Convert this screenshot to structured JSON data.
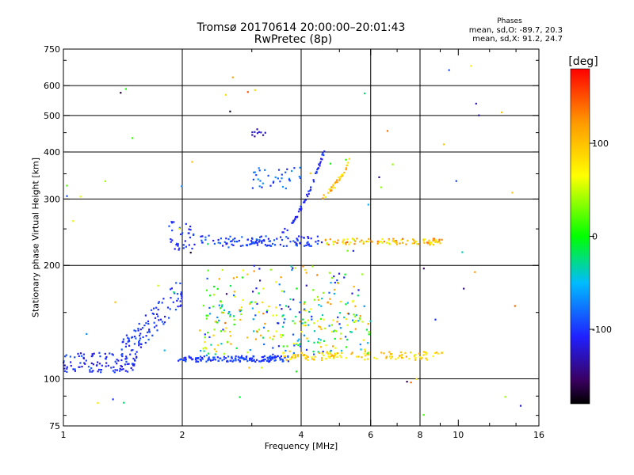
{
  "chart_data": {
    "type": "scatter",
    "title": "Tromsø 20170614 20:00:00–20:01:43",
    "subtitle": "RwPretec (8p)",
    "stats": {
      "header": "Phases",
      "o_line": "mean, sd,O:  -89.7, 20.3",
      "x_line": "mean, sd,X:  91.2, 24.7"
    },
    "xlabel": "Frequency [MHz]",
    "ylabel": "Stationary phase Virtual Height [km]",
    "x_scale": "log",
    "y_scale": "log",
    "xlim": [
      1,
      16
    ],
    "ylim": [
      75,
      750
    ],
    "x_ticks": [
      1,
      2,
      4,
      6,
      8,
      10,
      16
    ],
    "x_tick_labels": [
      "1",
      "2",
      "4",
      "6",
      "8",
      "10",
      "16"
    ],
    "x_gridlines": [
      2,
      4,
      6,
      8
    ],
    "y_ticks": [
      75,
      100,
      200,
      300,
      400,
      500,
      600,
      750
    ],
    "y_tick_labels": [
      "75",
      "100",
      "200",
      "300",
      "400",
      "500",
      "600",
      "750"
    ],
    "y_gridlines": [
      100,
      200,
      300,
      400,
      500,
      600
    ],
    "grid": true,
    "colorbar": {
      "label": "[deg]",
      "range": [
        -180,
        180
      ],
      "ticks": [
        100,
        0,
        -100
      ],
      "tick_labels": [
        "100",
        "0",
        "-100"
      ]
    },
    "clusters": [
      {
        "name": "e-region-low-trace",
        "f": [
          1.0,
          1.55
        ],
        "h": [
          104,
          118
        ],
        "phase": [
          -125,
          -85
        ],
        "n": 100
      },
      {
        "name": "e-region-rise-trace",
        "f": [
          1.4,
          2.0
        ],
        "h": [
          115,
          172
        ],
        "phase": [
          -115,
          -85
        ],
        "n": 110
      },
      {
        "name": "e-region-flat-trace",
        "f": [
          1.95,
          3.75
        ],
        "h": [
          111,
          115
        ],
        "phase": [
          -110,
          -85
        ],
        "n": 150
      },
      {
        "name": "e-x-mode-band",
        "f": [
          3.6,
          9.1
        ],
        "h": [
          112,
          118
        ],
        "phase": [
          55,
          120
        ],
        "n": 120
      },
      {
        "name": "e-mixed-band",
        "f": [
          2.2,
          6.0
        ],
        "h": [
          115,
          160
        ],
        "phase": [
          -110,
          125
        ],
        "n": 210
      },
      {
        "name": "e-upper-scatter",
        "f": [
          2.3,
          5.7
        ],
        "h": [
          140,
          200
        ],
        "phase": [
          -140,
          140
        ],
        "n": 110
      },
      {
        "name": "f-region-o-band",
        "f": [
          2.2,
          4.6
        ],
        "h": [
          225,
          240
        ],
        "phase": [
          -120,
          -80
        ],
        "n": 120
      },
      {
        "name": "f-region-x-band",
        "f": [
          4.6,
          9.1
        ],
        "h": [
          227,
          236
        ],
        "phase": [
          50,
          150
        ],
        "n": 100
      },
      {
        "name": "f-region-low-cluster",
        "f": [
          1.85,
          2.15
        ],
        "h": [
          220,
          262
        ],
        "phase": [
          -115,
          -85
        ],
        "n": 35
      },
      {
        "name": "f-cusp-o-trace",
        "f": [
          3.55,
          4.6
        ],
        "h": [
          245,
          410
        ],
        "phase": [
          -120,
          -95
        ],
        "n": 55
      },
      {
        "name": "f-cusp-x-trace",
        "f": [
          4.5,
          5.3
        ],
        "h": [
          305,
          380
        ],
        "phase": [
          70,
          130
        ],
        "n": 35
      },
      {
        "name": "f-mid-scatter",
        "f": [
          3.0,
          4.0
        ],
        "h": [
          320,
          365
        ],
        "phase": [
          -120,
          -60
        ],
        "n": 35
      },
      {
        "name": "high-clump",
        "f": [
          3.0,
          3.25
        ],
        "h": [
          440,
          460
        ],
        "phase": [
          -140,
          -120
        ],
        "n": 10
      },
      {
        "name": "sparse-background",
        "f": [
          1.0,
          16.0
        ],
        "h": [
          78,
          680
        ],
        "phase": [
          -180,
          180
        ],
        "n": 70
      }
    ]
  }
}
